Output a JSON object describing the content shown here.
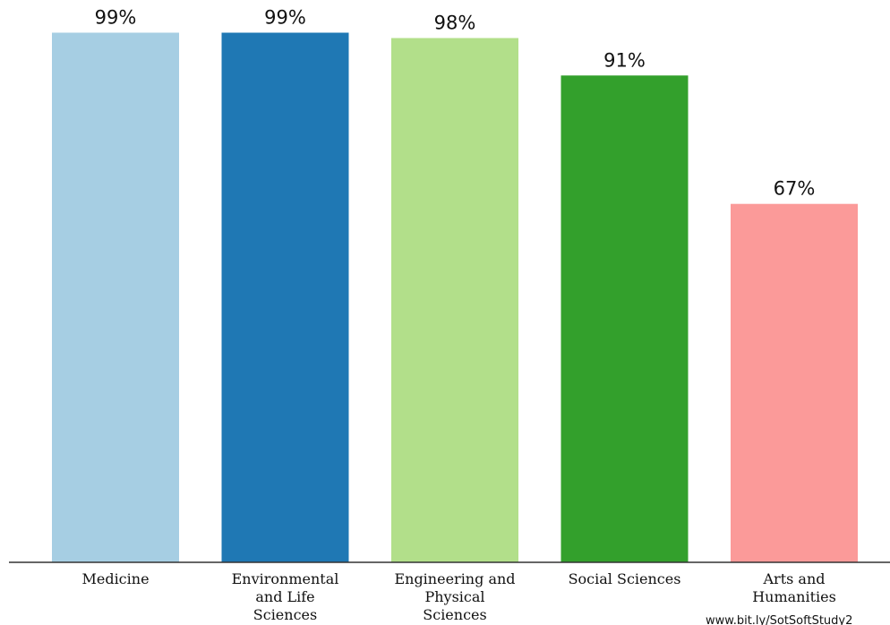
{
  "chart_data": {
    "type": "bar",
    "title": "",
    "xlabel": "",
    "ylabel": "",
    "ylim": [
      0,
      100
    ],
    "grid": false,
    "legend": "none",
    "categories": [
      "Medicine",
      "Environmental and Life Sciences",
      "Engineering and Physical Sciences",
      "Social Sciences",
      "Arts and Humanities"
    ],
    "category_lines": [
      [
        "Medicine"
      ],
      [
        "Environmental",
        "and Life",
        "Sciences"
      ],
      [
        "Engineering and",
        "Physical",
        "Sciences"
      ],
      [
        "Social Sciences"
      ],
      [
        "Arts and",
        "Humanities"
      ]
    ],
    "values": [
      99,
      99,
      98,
      91,
      67
    ],
    "value_labels": [
      "99%",
      "99%",
      "98%",
      "91%",
      "67%"
    ],
    "colors": [
      "#a6cee3",
      "#1f78b4",
      "#b2df8a",
      "#33a02c",
      "#fb9a99"
    ]
  },
  "watermark": "www.bit.ly/SotSoftStudy2"
}
